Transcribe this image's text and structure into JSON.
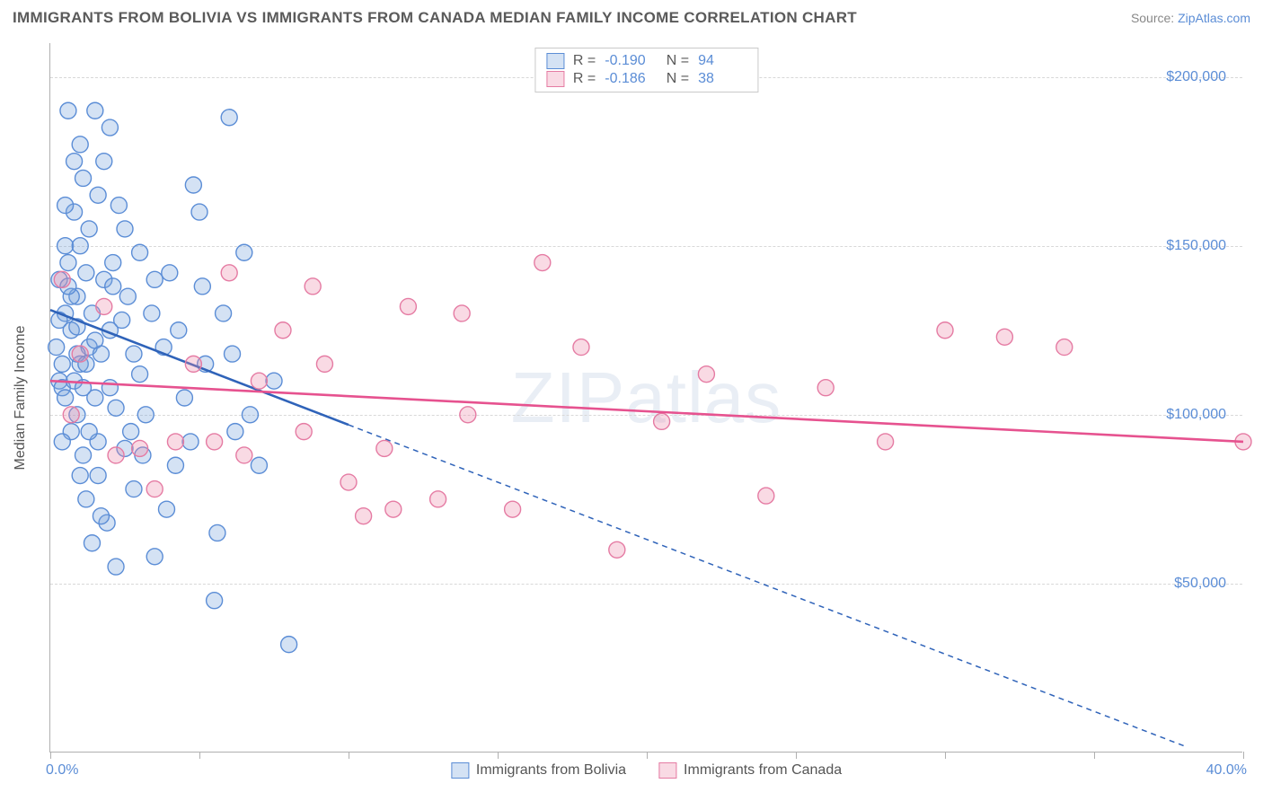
{
  "header": {
    "title": "IMMIGRANTS FROM BOLIVIA VS IMMIGRANTS FROM CANADA MEDIAN FAMILY INCOME CORRELATION CHART",
    "source_prefix": "Source: ",
    "source_link": "ZipAtlas.com"
  },
  "chart": {
    "type": "scatter",
    "yaxis_title": "Median Family Income",
    "watermark": "ZIPatlas",
    "xlim": [
      0,
      40
    ],
    "ylim": [
      0,
      210000
    ],
    "x_tick_positions": [
      0,
      5,
      10,
      15,
      20,
      25,
      30,
      35,
      40
    ],
    "x_axis_labels": {
      "min": "0.0%",
      "max": "40.0%"
    },
    "y_ticks": [
      {
        "v": 50000,
        "label": "$50,000"
      },
      {
        "v": 100000,
        "label": "$100,000"
      },
      {
        "v": 150000,
        "label": "$150,000"
      },
      {
        "v": 200000,
        "label": "$200,000"
      }
    ],
    "grid_color": "#d8d8d8",
    "axis_color": "#b0b0b0",
    "tick_label_color": "#5b8dd6",
    "background_color": "#ffffff",
    "marker_radius": 9,
    "marker_stroke_width": 1.4,
    "trend_line_width": 2.6,
    "trend_dash": "6,5",
    "series": [
      {
        "name": "Immigrants from Bolivia",
        "fill": "rgba(120,165,220,0.32)",
        "stroke": "#5b8dd6",
        "line_color": "#2f63b9",
        "R": "-0.190",
        "N": "94",
        "trend": {
          "x1": 0,
          "y1": 131000,
          "x2_solid": 10,
          "y2_solid": 97000,
          "x2": 38,
          "y2": 2000
        },
        "points": [
          [
            0.2,
            120000
          ],
          [
            0.3,
            110000
          ],
          [
            0.3,
            140000
          ],
          [
            0.4,
            115000
          ],
          [
            0.4,
            108000
          ],
          [
            0.5,
            150000
          ],
          [
            0.5,
            130000
          ],
          [
            0.5,
            105000
          ],
          [
            0.6,
            190000
          ],
          [
            0.6,
            145000
          ],
          [
            0.7,
            125000
          ],
          [
            0.7,
            95000
          ],
          [
            0.8,
            175000
          ],
          [
            0.8,
            160000
          ],
          [
            0.8,
            110000
          ],
          [
            0.9,
            135000
          ],
          [
            0.9,
            100000
          ],
          [
            1.0,
            180000
          ],
          [
            1.0,
            150000
          ],
          [
            1.0,
            115000
          ],
          [
            1.1,
            170000
          ],
          [
            1.1,
            88000
          ],
          [
            1.2,
            142000
          ],
          [
            1.2,
            75000
          ],
          [
            1.3,
            155000
          ],
          [
            1.3,
            120000
          ],
          [
            1.4,
            130000
          ],
          [
            1.4,
            62000
          ],
          [
            1.5,
            190000
          ],
          [
            1.5,
            105000
          ],
          [
            1.6,
            165000
          ],
          [
            1.6,
            92000
          ],
          [
            1.7,
            118000
          ],
          [
            1.8,
            175000
          ],
          [
            1.8,
            140000
          ],
          [
            1.9,
            68000
          ],
          [
            2.0,
            185000
          ],
          [
            2.0,
            108000
          ],
          [
            2.1,
            145000
          ],
          [
            2.2,
            55000
          ],
          [
            2.3,
            162000
          ],
          [
            2.4,
            128000
          ],
          [
            2.5,
            90000
          ],
          [
            2.6,
            135000
          ],
          [
            2.8,
            78000
          ],
          [
            3.0,
            148000
          ],
          [
            3.0,
            112000
          ],
          [
            3.2,
            100000
          ],
          [
            3.4,
            130000
          ],
          [
            3.5,
            58000
          ],
          [
            3.8,
            120000
          ],
          [
            4.0,
            142000
          ],
          [
            4.2,
            85000
          ],
          [
            4.5,
            105000
          ],
          [
            4.8,
            168000
          ],
          [
            5.0,
            160000
          ],
          [
            5.2,
            115000
          ],
          [
            5.5,
            45000
          ],
          [
            5.8,
            130000
          ],
          [
            6.0,
            188000
          ],
          [
            6.2,
            95000
          ],
          [
            6.5,
            148000
          ],
          [
            7.0,
            85000
          ],
          [
            7.5,
            110000
          ],
          [
            8.0,
            32000
          ],
          [
            1.0,
            82000
          ],
          [
            0.3,
            128000
          ],
          [
            0.5,
            162000
          ],
          [
            0.7,
            135000
          ],
          [
            0.9,
            118000
          ],
          [
            1.1,
            108000
          ],
          [
            1.3,
            95000
          ],
          [
            1.5,
            122000
          ],
          [
            1.7,
            70000
          ],
          [
            2.0,
            125000
          ],
          [
            2.2,
            102000
          ],
          [
            2.5,
            155000
          ],
          [
            2.8,
            118000
          ],
          [
            3.1,
            88000
          ],
          [
            3.5,
            140000
          ],
          [
            3.9,
            72000
          ],
          [
            4.3,
            125000
          ],
          [
            4.7,
            92000
          ],
          [
            5.1,
            138000
          ],
          [
            5.6,
            65000
          ],
          [
            6.1,
            118000
          ],
          [
            6.7,
            100000
          ],
          [
            0.4,
            92000
          ],
          [
            0.6,
            138000
          ],
          [
            0.9,
            126000
          ],
          [
            1.2,
            115000
          ],
          [
            1.6,
            82000
          ],
          [
            2.1,
            138000
          ],
          [
            2.7,
            95000
          ]
        ]
      },
      {
        "name": "Immigrants from Canada",
        "fill": "rgba(235,140,170,0.32)",
        "stroke": "#e57ba3",
        "line_color": "#e6528f",
        "R": "-0.186",
        "N": "38",
        "trend": {
          "x1": 0,
          "y1": 110000,
          "x2_solid": 40,
          "y2_solid": 92000,
          "x2": 40,
          "y2": 92000
        },
        "points": [
          [
            0.4,
            140000
          ],
          [
            0.7,
            100000
          ],
          [
            1.0,
            118000
          ],
          [
            1.8,
            132000
          ],
          [
            2.2,
            88000
          ],
          [
            3.0,
            90000
          ],
          [
            3.5,
            78000
          ],
          [
            4.2,
            92000
          ],
          [
            4.8,
            115000
          ],
          [
            5.5,
            92000
          ],
          [
            6.0,
            142000
          ],
          [
            6.5,
            88000
          ],
          [
            7.0,
            110000
          ],
          [
            7.8,
            125000
          ],
          [
            8.5,
            95000
          ],
          [
            9.2,
            115000
          ],
          [
            10.0,
            80000
          ],
          [
            10.5,
            70000
          ],
          [
            11.2,
            90000
          ],
          [
            12.0,
            132000
          ],
          [
            13.0,
            75000
          ],
          [
            14.0,
            100000
          ],
          [
            15.5,
            72000
          ],
          [
            16.5,
            145000
          ],
          [
            17.8,
            120000
          ],
          [
            19.0,
            60000
          ],
          [
            20.5,
            98000
          ],
          [
            22.0,
            112000
          ],
          [
            24.0,
            76000
          ],
          [
            26.0,
            108000
          ],
          [
            28.0,
            92000
          ],
          [
            30.0,
            125000
          ],
          [
            32.0,
            123000
          ],
          [
            34.0,
            120000
          ],
          [
            8.8,
            138000
          ],
          [
            11.5,
            72000
          ],
          [
            13.8,
            130000
          ],
          [
            40.0,
            92000
          ]
        ]
      }
    ],
    "bottom_legend": [
      {
        "label": "Immigrants from Bolivia",
        "fill": "rgba(120,165,220,0.32)",
        "stroke": "#5b8dd6"
      },
      {
        "label": "Immigrants from Canada",
        "fill": "rgba(235,140,170,0.32)",
        "stroke": "#e57ba3"
      }
    ]
  }
}
